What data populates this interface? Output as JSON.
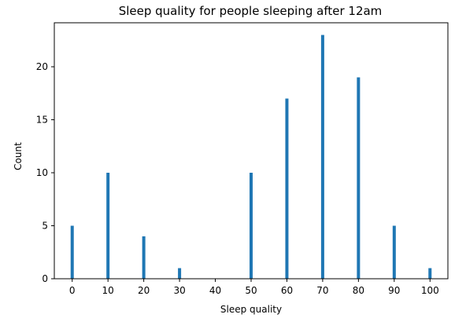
{
  "chart_data": {
    "type": "bar",
    "title": "Sleep quality for people sleeping after 12am",
    "xlabel": "Sleep quality",
    "ylabel": "Count",
    "x": [
      0,
      10,
      20,
      30,
      50,
      60,
      70,
      80,
      90,
      100
    ],
    "values": [
      5,
      10,
      4,
      1,
      10,
      17,
      23,
      19,
      5,
      1
    ],
    "xticks": [
      "0",
      "10",
      "20",
      "30",
      "40",
      "50",
      "60",
      "70",
      "80",
      "90",
      "100"
    ],
    "yticks": [
      "0",
      "5",
      "10",
      "15",
      "20"
    ],
    "xlim": [
      -5,
      105
    ],
    "ylim": [
      0,
      24.15
    ],
    "grid": false,
    "bar_color": "#1f77b4"
  }
}
